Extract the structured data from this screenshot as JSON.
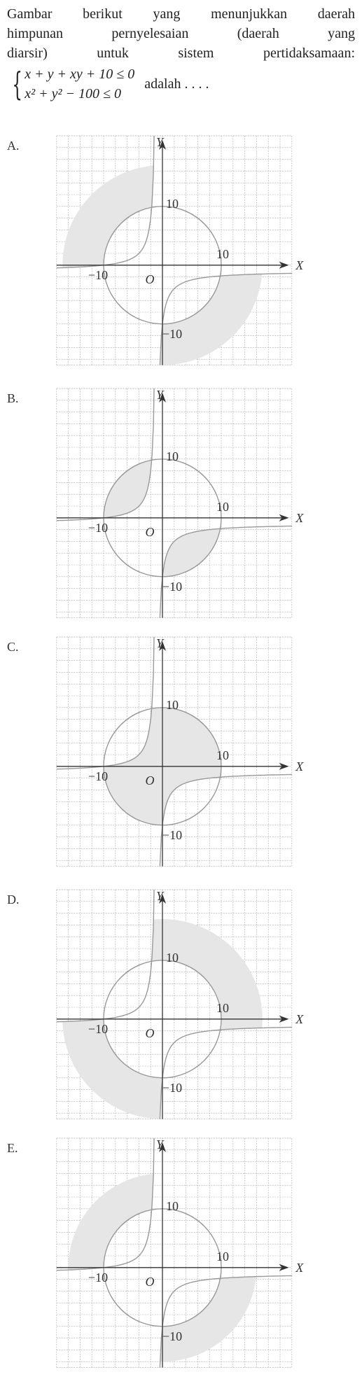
{
  "question": {
    "lines": [
      "Gambar berikut yang menunjukkan daerah",
      "himpunan pernyelesaian (daerah yang",
      "diarsir) untuk sistem pertidaksamaan:"
    ],
    "system": [
      "x + y + xy + 10 ≤ 0",
      "x² + y² − 100 ≤ 0"
    ],
    "suffix": "adalah . . . ."
  },
  "options": [
    {
      "label": "A.",
      "y_axis": "Y",
      "x_axis": "X",
      "origin": "O",
      "y_pos": "10",
      "x_pos": "10",
      "x_neg": "−10",
      "y_neg": "−10"
    },
    {
      "label": "B.",
      "y_axis": "Y",
      "x_axis": "X",
      "origin": "O",
      "y_pos": "10",
      "x_pos": "10",
      "x_neg": "−10",
      "y_neg": "−10"
    },
    {
      "label": "C.",
      "y_axis": "Y",
      "x_axis": "X",
      "origin": "O",
      "y_pos": "10",
      "x_pos": "10",
      "x_neg": "−10",
      "y_neg": "−10"
    },
    {
      "label": "D.",
      "y_axis": "Y",
      "x_axis": "X",
      "origin": "O",
      "y_pos": "10",
      "x_pos": "10",
      "x_neg": "−10",
      "y_neg": "−10"
    },
    {
      "label": "E.",
      "y_axis": "Y",
      "x_axis": "X",
      "origin": "O",
      "y_pos": "10",
      "x_pos": "10",
      "x_neg": "−10",
      "y_neg": "−10"
    }
  ]
}
